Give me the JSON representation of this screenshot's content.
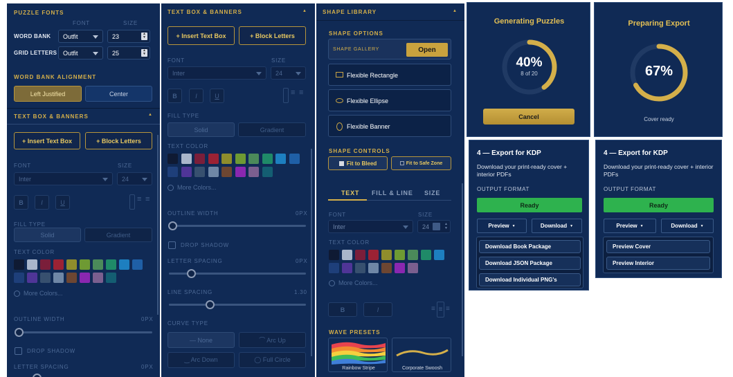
{
  "puzzle_fonts": {
    "title": "PUZZLE FONTS",
    "font_header": "FONT",
    "size_header": "SIZE",
    "word_bank_label": "WORD BANK",
    "word_bank_font": "Outfit",
    "word_bank_size": "23",
    "grid_letters_label": "GRID LETTERS",
    "grid_letters_font": "Outfit",
    "grid_letters_size": "25",
    "alignment_title": "WORD BANK ALIGNMENT",
    "left_justified": "Left Justified",
    "center": "Center"
  },
  "tb1": {
    "title": "TEXT BOX & BANNERS",
    "insert_text_box": "+ Insert Text Box",
    "block_letters": "+ Block Letters",
    "font_label": "FONT",
    "size_label": "SIZE",
    "font_value": "Inter",
    "size_value": "24",
    "bold": "B",
    "italic": "I",
    "underline": "U",
    "fill_type": "FILL TYPE",
    "solid": "Solid",
    "gradient": "Gradient",
    "text_color": "TEXT COLOR",
    "more_colors": "More Colors...",
    "outline_width": "OUTLINE WIDTH",
    "outline_value": "0px",
    "drop_shadow": "DROP SHADOW",
    "letter_spacing": "LETTER SPACING",
    "letter_value": "0px"
  },
  "tb2": {
    "title": "TEXT BOX & BANNERS",
    "insert_text_box": "+ Insert Text Box",
    "block_letters": "+ Block Letters",
    "font_label": "FONT",
    "size_label": "SIZE",
    "font_value": "Inter",
    "size_value": "24",
    "bold": "B",
    "italic": "I",
    "underline": "U",
    "fill_type": "FILL TYPE",
    "solid": "Solid",
    "gradient": "Gradient",
    "text_color": "TEXT COLOR",
    "more_colors": "More Colors...",
    "outline_width": "OUTLINE WIDTH",
    "outline_value": "0px",
    "drop_shadow": "DROP SHADOW",
    "letter_spacing": "LETTER SPACING",
    "letter_value": "0px",
    "line_spacing": "LINE SPACING",
    "line_value": "1.30",
    "curve_type": "CURVE TYPE",
    "curve_none": "— None",
    "curve_arc_up": "⌒ Arc Up",
    "curve_arc_down": "‿ Arc Down",
    "curve_full_circle": "◯ Full Circle"
  },
  "shape": {
    "title": "SHAPE LIBRARY",
    "options_title": "SHAPE OPTIONS",
    "gallery_label": "SHAPE GALLERY",
    "open": "Open",
    "rect": "Flexible Rectangle",
    "ellipse": "Flexible Ellipse",
    "banner": "Flexible Banner",
    "controls_title": "SHAPE CONTROLS",
    "fit_bleed": "Fit to Bleed",
    "fit_safe": "Fit to Safe Zone",
    "tab_text": "TEXT",
    "tab_fill": "FILL & LINE",
    "tab_size": "SIZE",
    "font_label": "FONT",
    "size_label": "SIZE",
    "font_value": "Inter",
    "size_value": "24",
    "text_color": "TEXT COLOR",
    "more_colors": "More Colors...",
    "bold": "B",
    "italic": "I",
    "wave_title": "WAVE PRESETS",
    "wave1": "Rainbow Stripe",
    "wave2": "Corporate Swoosh"
  },
  "gen": {
    "title": "Generating Puzzles",
    "percent": "40%",
    "progress": 0.4,
    "sub": "8 of 20",
    "cancel": "Cancel"
  },
  "prep": {
    "title": "Preparing Export",
    "percent": "67%",
    "progress": 0.67,
    "status": "Cover ready"
  },
  "export1": {
    "title": "4 — Export for KDP",
    "desc": "Download your print-ready cover + interior PDFs",
    "format_label": "OUTPUT FORMAT",
    "ready": "Ready",
    "preview": "Preview",
    "download": "Download",
    "items": [
      "Download Book Package",
      "Download JSON Package",
      "Download Individual PNG's"
    ]
  },
  "export2": {
    "title": "4 — Export for KDP",
    "desc": "Download your print-ready cover + interior PDFs",
    "format_label": "OUTPUT FORMAT",
    "ready": "Ready",
    "preview": "Preview",
    "download": "Download",
    "items": [
      "Preview Cover",
      "Preview Interior"
    ]
  },
  "colors": {
    "swatches_row1": [
      "#0f1a33",
      "#a9b6cb",
      "#7a1e3a",
      "#9b2234",
      "#8f8d2c",
      "#6e9a33",
      "#4b8a5a",
      "#1f8a68",
      "#1d7fc0",
      "#1f5fa6"
    ],
    "swatches_row2": [
      "#1e3f7a",
      "#4f3597",
      "#37506f",
      "#6f87a6",
      "#6d4632",
      "#8a27b0",
      "#7b5f8f",
      "#145e72"
    ],
    "gold": "#d4af4a",
    "green": "#2eb24e",
    "panel": "#102a55"
  }
}
